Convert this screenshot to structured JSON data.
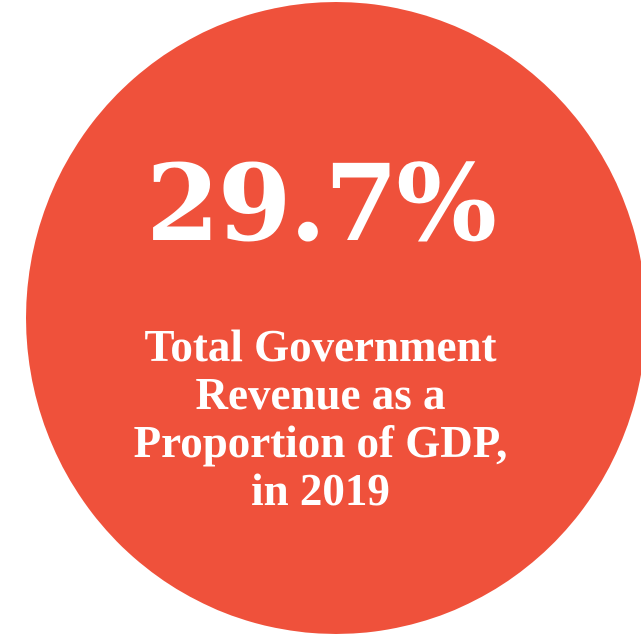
{
  "stat": {
    "value": "29.7%",
    "caption_lines": [
      "Total Government",
      "Revenue as a",
      "Proportion of GDP,",
      "in 2019"
    ]
  },
  "colors": {
    "circle": "#ef513b",
    "text": "#ffffff",
    "background": "#ffffff"
  }
}
